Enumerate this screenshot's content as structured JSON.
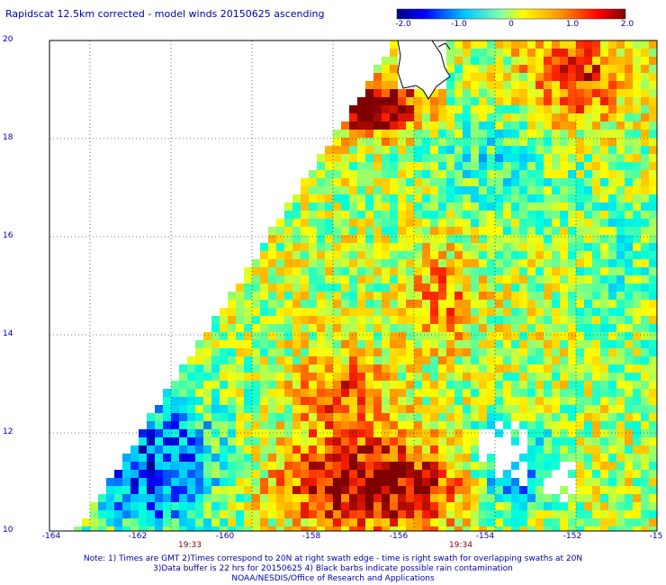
{
  "title": "Rapidscat 12.5km corrected - model winds 20150625 ascending",
  "colorbar": {
    "ticks": [
      "-2.0",
      "-1.0",
      "0",
      "1.0",
      "2.0"
    ],
    "range": [
      -2.0,
      2.0
    ]
  },
  "map": {
    "lat_range": [
      10,
      20
    ],
    "lon_range": [
      -165,
      -150
    ],
    "lat_ticks": [
      "10",
      "12",
      "14",
      "16",
      "18",
      "20"
    ],
    "lon_ticks": [
      "-164",
      "-162",
      "-160",
      "-158",
      "-156",
      "-154",
      "-152",
      "-15"
    ],
    "swath_times": [
      {
        "label": "19:33",
        "lon": -161
      },
      {
        "label": "19:34",
        "lon": -154.7
      }
    ],
    "field": "wind speed difference (corrected - model)"
  },
  "notes": [
    "Note: 1) Times are GMT 2)Times correspond to 20N at right swath edge - time is right swath for overlapping swaths at 20N",
    "3)Data buffer is 22 hrs for 20150625 4) Black barbs indicate possible rain contamination",
    "NOAA/NESDIS/Office of Research and Applications"
  ]
}
